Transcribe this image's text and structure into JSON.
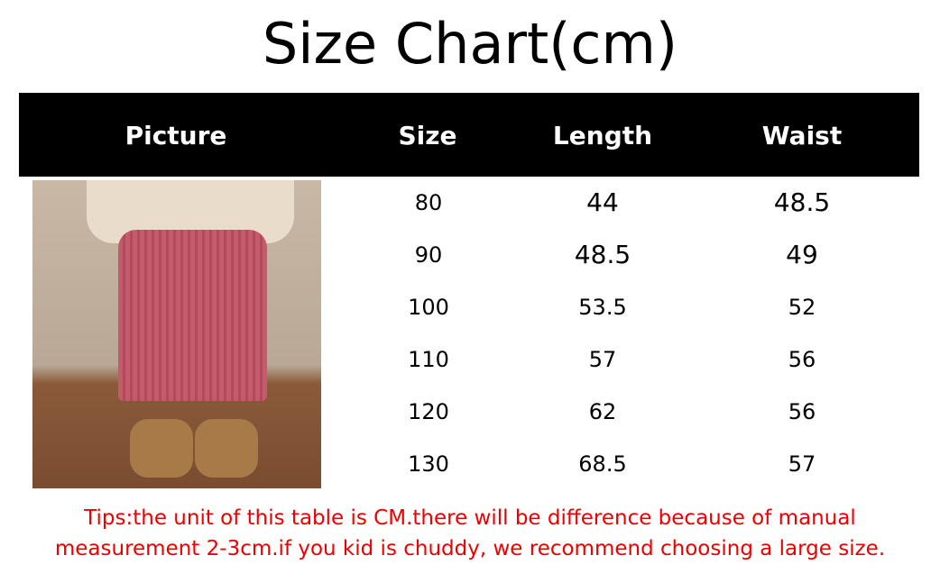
{
  "title": "Size Chart(cm)",
  "headers": [
    "Picture",
    "Size",
    "Length",
    "Waist"
  ],
  "rows": [
    {
      "size": "80",
      "length": "44",
      "waist": "48.5"
    },
    {
      "size": "90",
      "length": "48.5",
      "waist": "49"
    },
    {
      "size": "100",
      "length": "53.5",
      "waist": "52"
    },
    {
      "size": "110",
      "length": "57",
      "waist": "56"
    },
    {
      "size": "120",
      "length": "62",
      "waist": "56"
    },
    {
      "size": "130",
      "length": "68.5",
      "waist": "57"
    }
  ],
  "tips": [
    "Tips:the unit of this table is CM.there will be difference because of manual",
    "measurement 2-3cm.if you kid is chuddy, we recommend choosing a large size."
  ],
  "colors": {
    "header_bg": "#000000",
    "tips": "#ee0000"
  }
}
